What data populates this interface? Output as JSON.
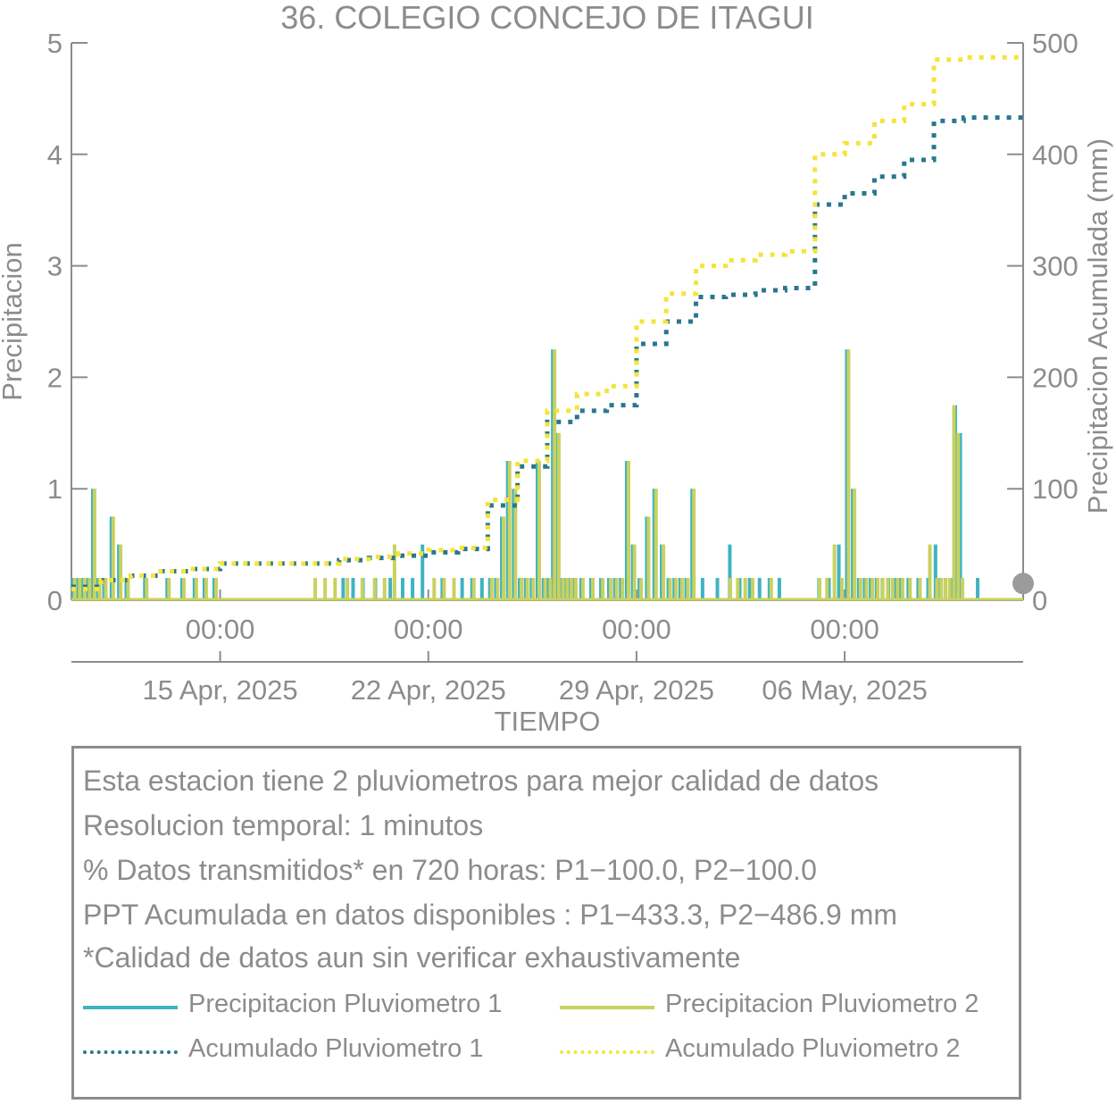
{
  "chart_data": {
    "type": "bar",
    "title": "36. COLEGIO CONCEJO DE ITAGUI",
    "xlabel": "TIEMPO",
    "ylabel": "Precipitacion",
    "ylabel_right": "Precipitacion Acumulada (mm)",
    "ylim": [
      0,
      5
    ],
    "ylim_right": [
      0,
      500
    ],
    "yticks": [
      "0",
      "1",
      "2",
      "3",
      "4",
      "5"
    ],
    "yticks_right": [
      "0",
      "100",
      "200",
      "300",
      "400",
      "500"
    ],
    "xlim": [
      "2025-04-10",
      "2025-05-12"
    ],
    "xticks": [
      {
        "date": "2025-04-15",
        "time": "00:00",
        "label": "15 Apr, 2025"
      },
      {
        "date": "2025-04-22",
        "time": "00:00",
        "label": "22 Apr, 2025"
      },
      {
        "date": "2025-04-29",
        "time": "00:00",
        "label": "29 Apr, 2025"
      },
      {
        "date": "2025-05-06",
        "time": "00:00",
        "label": "06 May, 2025"
      }
    ],
    "colors": {
      "p1": "#3fb3c2",
      "p2": "#c9d160",
      "acc1": "#2a7690",
      "acc2": "#f4e43a",
      "axis": "#8c8c8c"
    },
    "series": [
      {
        "name": "Precipitacion Pluviometro 1",
        "kind": "bar",
        "axis": "left",
        "x": [
          "2025-04-10",
          "2025-04-10",
          "2025-04-10",
          "2025-04-10",
          "2025-04-10",
          "2025-04-10",
          "2025-04-11",
          "2025-04-11",
          "2025-04-11",
          "2025-04-11",
          "2025-04-12",
          "2025-04-13",
          "2025-04-13",
          "2025-04-14",
          "2025-04-14",
          "2025-04-14",
          "2025-04-19",
          "2025-04-19",
          "2025-04-19",
          "2025-04-20",
          "2025-04-20",
          "2025-04-21",
          "2025-04-21",
          "2025-04-21",
          "2025-04-22",
          "2025-04-23",
          "2025-04-23",
          "2025-04-23",
          "2025-04-24",
          "2025-04-24",
          "2025-04-24",
          "2025-04-24",
          "2025-04-24",
          "2025-04-25",
          "2025-04-25",
          "2025-04-25",
          "2025-04-25",
          "2025-04-25",
          "2025-04-26",
          "2025-04-26",
          "2025-04-26",
          "2025-04-26",
          "2025-04-26",
          "2025-04-26",
          "2025-04-26",
          "2025-04-27",
          "2025-04-27",
          "2025-04-27",
          "2025-04-28",
          "2025-04-28",
          "2025-04-28",
          "2025-04-28",
          "2025-04-28",
          "2025-04-29",
          "2025-04-29",
          "2025-04-29",
          "2025-04-29",
          "2025-04-30",
          "2025-04-30",
          "2025-04-30",
          "2025-04-30",
          "2025-04-30",
          "2025-05-01",
          "2025-05-01",
          "2025-05-02",
          "2025-05-02",
          "2025-05-02",
          "2025-05-03",
          "2025-05-03",
          "2025-05-03",
          "2025-05-05",
          "2025-05-05",
          "2025-05-05",
          "2025-05-06",
          "2025-05-06",
          "2025-05-06",
          "2025-05-06",
          "2025-05-06",
          "2025-05-07",
          "2025-05-07",
          "2025-05-07",
          "2025-05-07",
          "2025-05-07",
          "2025-05-08",
          "2025-05-08",
          "2025-05-08",
          "2025-05-09",
          "2025-05-09",
          "2025-05-09",
          "2025-05-09",
          "2025-05-09",
          "2025-05-09",
          "2025-05-10"
        ],
        "values": [
          0.2,
          0.2,
          0.2,
          0.2,
          1.0,
          0.2,
          0.2,
          0.75,
          0.5,
          0.2,
          0.2,
          0.2,
          0.2,
          0.2,
          0.2,
          0.2,
          0.2,
          0.2,
          0.2,
          0.2,
          0.2,
          0.2,
          0.2,
          0.5,
          0.2,
          0.2,
          0.2,
          0.2,
          0.2,
          0.2,
          0.75,
          1.25,
          1.0,
          0.2,
          0.2,
          0.2,
          1.25,
          0.2,
          0.2,
          2.25,
          1.5,
          0.2,
          0.2,
          0.2,
          0.2,
          0.2,
          0.2,
          0.2,
          0.2,
          0.2,
          0.2,
          1.25,
          0.5,
          0.2,
          0.75,
          1.0,
          0.5,
          0.2,
          0.2,
          0.2,
          0.2,
          1.0,
          0.2,
          0.2,
          0.5,
          0.2,
          0.2,
          0.2,
          0.2,
          0.2,
          0.2,
          0.2,
          0.5,
          2.25,
          1.0,
          0.2,
          0.2,
          0.2,
          0.2,
          0.2,
          0.2,
          0.2,
          0.2,
          0.2,
          0.2,
          0.2,
          0.5,
          0.2,
          0.2,
          0.2,
          1.75,
          1.5,
          0.2
        ]
      },
      {
        "name": "Precipitacion Pluviometro 2",
        "kind": "bar",
        "axis": "left",
        "x": [
          "2025-04-10",
          "2025-04-10",
          "2025-04-10",
          "2025-04-10",
          "2025-04-10",
          "2025-04-10",
          "2025-04-11",
          "2025-04-11",
          "2025-04-11",
          "2025-04-11",
          "2025-04-12",
          "2025-04-13",
          "2025-04-13",
          "2025-04-14",
          "2025-04-14",
          "2025-04-14",
          "2025-04-18",
          "2025-04-18",
          "2025-04-18",
          "2025-04-19",
          "2025-04-19",
          "2025-04-20",
          "2025-04-20",
          "2025-04-20",
          "2025-04-22",
          "2025-04-22",
          "2025-04-22",
          "2025-04-23",
          "2025-04-24",
          "2025-04-24",
          "2025-04-24",
          "2025-04-24",
          "2025-04-24",
          "2025-04-25",
          "2025-04-25",
          "2025-04-25",
          "2025-04-25",
          "2025-04-25",
          "2025-04-26",
          "2025-04-26",
          "2025-04-26",
          "2025-04-26",
          "2025-04-26",
          "2025-04-26",
          "2025-04-26",
          "2025-04-27",
          "2025-04-27",
          "2025-04-27",
          "2025-04-28",
          "2025-04-28",
          "2025-04-28",
          "2025-04-28",
          "2025-04-28",
          "2025-04-29",
          "2025-04-29",
          "2025-04-29",
          "2025-04-29",
          "2025-04-30",
          "2025-04-30",
          "2025-04-30",
          "2025-04-30",
          "2025-04-30",
          "2025-05-02",
          "2025-05-02",
          "2025-05-02",
          "2025-05-02",
          "2025-05-03",
          "2025-05-05",
          "2025-05-05",
          "2025-05-05",
          "2025-05-05",
          "2025-05-06",
          "2025-05-06",
          "2025-05-06",
          "2025-05-06",
          "2025-05-06",
          "2025-05-07",
          "2025-05-07",
          "2025-05-07",
          "2025-05-07",
          "2025-05-07",
          "2025-05-07",
          "2025-05-08",
          "2025-05-08",
          "2025-05-08",
          "2025-05-09",
          "2025-05-09",
          "2025-05-09",
          "2025-05-09",
          "2025-05-09",
          "2025-05-09",
          "2025-05-09"
        ],
        "values": [
          0.2,
          0.2,
          0.2,
          0.2,
          1.0,
          0.2,
          0.2,
          0.75,
          0.5,
          0.2,
          0.2,
          0.2,
          0.2,
          0.2,
          0.2,
          0.2,
          0.2,
          0.2,
          0.2,
          0.2,
          0.2,
          0.2,
          0.2,
          0.5,
          0.2,
          0.2,
          0.2,
          0.2,
          0.2,
          0.2,
          0.75,
          1.25,
          1.0,
          0.2,
          0.2,
          0.2,
          1.25,
          0.2,
          0.2,
          2.25,
          1.5,
          0.2,
          0.2,
          0.2,
          0.2,
          0.2,
          0.2,
          0.2,
          0.2,
          0.2,
          0.2,
          1.25,
          0.5,
          0.2,
          0.75,
          1.0,
          0.5,
          0.2,
          0.2,
          0.2,
          0.2,
          1.0,
          0.2,
          0.2,
          0.2,
          0.2,
          0.2,
          0.2,
          0.2,
          0.5,
          0.2,
          2.25,
          1.0,
          0.2,
          0.2,
          0.2,
          0.2,
          0.2,
          0.2,
          0.2,
          0.2,
          0.2,
          0.2,
          0.2,
          0.5,
          0.2,
          0.2,
          0.2,
          0.2,
          1.75,
          1.5,
          0.2
        ]
      },
      {
        "name": "Acumulado Pluviometro 1",
        "kind": "step",
        "axis": "right",
        "x": [
          "2025-04-10",
          "2025-04-11",
          "2025-04-12",
          "2025-04-13",
          "2025-04-14",
          "2025-04-15",
          "2025-04-17",
          "2025-04-19",
          "2025-04-20",
          "2025-04-21",
          "2025-04-22",
          "2025-04-23",
          "2025-04-24",
          "2025-04-24",
          "2025-04-25",
          "2025-04-25",
          "2025-04-26",
          "2025-04-26",
          "2025-04-27",
          "2025-04-28",
          "2025-04-28",
          "2025-04-29",
          "2025-04-29",
          "2025-04-30",
          "2025-05-01",
          "2025-05-02",
          "2025-05-03",
          "2025-05-04",
          "2025-05-05",
          "2025-05-05",
          "2025-05-06",
          "2025-05-06",
          "2025-05-07",
          "2025-05-07",
          "2025-05-08",
          "2025-05-08",
          "2025-05-09",
          "2025-05-09",
          "2025-05-10",
          "2025-05-11",
          "2025-05-12"
        ],
        "values": [
          12,
          18,
          22,
          26,
          28,
          33,
          33,
          36,
          38,
          40,
          43,
          46,
          48,
          85,
          88,
          120,
          125,
          160,
          170,
          172,
          175,
          215,
          230,
          250,
          272,
          274,
          278,
          280,
          280,
          355,
          360,
          365,
          372,
          380,
          390,
          395,
          400,
          430,
          433,
          433,
          433
        ]
      },
      {
        "name": "Acumulado Pluviometro 2",
        "kind": "step",
        "axis": "right",
        "x": [
          "2025-04-10",
          "2025-04-11",
          "2025-04-12",
          "2025-04-13",
          "2025-04-14",
          "2025-04-15",
          "2025-04-17",
          "2025-04-19",
          "2025-04-20",
          "2025-04-21",
          "2025-04-22",
          "2025-04-23",
          "2025-04-24",
          "2025-04-24",
          "2025-04-25",
          "2025-04-25",
          "2025-04-26",
          "2025-04-26",
          "2025-04-27",
          "2025-04-28",
          "2025-04-28",
          "2025-04-29",
          "2025-04-29",
          "2025-04-30",
          "2025-05-01",
          "2025-05-02",
          "2025-05-03",
          "2025-05-04",
          "2025-05-05",
          "2025-05-05",
          "2025-05-06",
          "2025-05-06",
          "2025-05-07",
          "2025-05-07",
          "2025-05-08",
          "2025-05-08",
          "2025-05-09",
          "2025-05-09",
          "2025-05-10",
          "2025-05-11",
          "2025-05-12"
        ],
        "values": [
          10,
          18,
          22,
          26,
          28,
          33,
          33,
          37,
          39,
          42,
          45,
          47,
          50,
          90,
          95,
          125,
          130,
          170,
          185,
          190,
          192,
          245,
          250,
          275,
          300,
          305,
          310,
          313,
          313,
          400,
          405,
          410,
          420,
          430,
          440,
          445,
          450,
          485,
          487,
          487,
          487
        ]
      }
    ],
    "end_marker": {
      "axis": "right",
      "date": "2025-05-12",
      "value": 15,
      "color": "#9b9b9b"
    }
  },
  "info": {
    "lines": [
      "Esta estacion tiene 2 pluviometros para mejor calidad de datos",
      "Resolucion temporal: 1 minutos",
      "% Datos transmitidos* en 720 horas: P1−100.0, P2−100.0",
      "PPT Acumulada en datos disponibles : P1−433.3, P2−486.9 mm",
      "*Calidad de datos aun sin verificar exhaustivamente"
    ],
    "legend": [
      {
        "label": "Precipitacion Pluviometro 1",
        "style": "solid",
        "color": "#3fb3c2"
      },
      {
        "label": "Precipitacion Pluviometro 2",
        "style": "solid",
        "color": "#c9d160"
      },
      {
        "label": "Acumulado Pluviometro 1",
        "style": "dotted",
        "color": "#2a7690"
      },
      {
        "label": "Acumulado Pluviometro 2",
        "style": "dotted",
        "color": "#f4e43a"
      }
    ]
  }
}
